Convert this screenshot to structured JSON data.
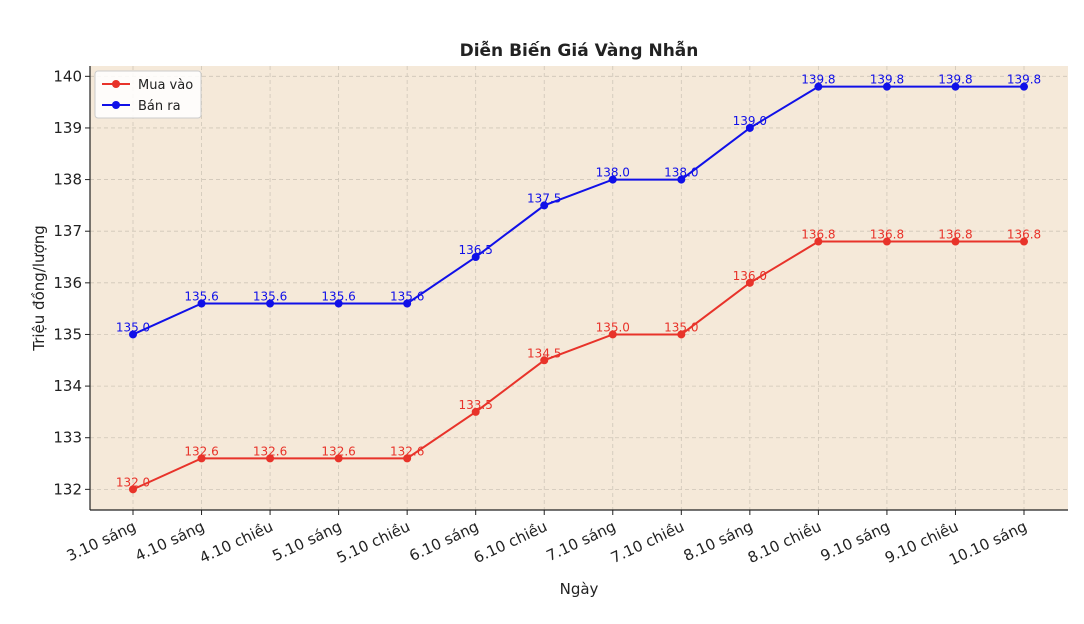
{
  "chart_data": {
    "type": "line",
    "title": "Diễn Biến Giá Vàng Nhẫn",
    "xlabel": "Ngày",
    "ylabel": "Triệu đồng/lượng",
    "categories": [
      "3.10 sáng",
      "4.10 sáng",
      "4.10 chiều",
      "5.10 sáng",
      "5.10 chiều",
      "6.10 sáng",
      "6.10 chiều",
      "7.10 sáng",
      "7.10 chiều",
      "8.10 sáng",
      "8.10 chiều",
      "9.10 sáng",
      "9.10 chiều",
      "10.10 sáng"
    ],
    "ylim": [
      131.6,
      140.2
    ],
    "yticks": [
      132,
      133,
      134,
      135,
      136,
      137,
      138,
      139,
      140
    ],
    "grid": true,
    "legend_position": "top-left",
    "background_color": "#f5e9d9",
    "series": [
      {
        "name": "Mua vào",
        "color": "#e8332a",
        "values": [
          132.0,
          132.6,
          132.6,
          132.6,
          132.6,
          133.5,
          134.5,
          135.0,
          135.0,
          136.0,
          136.8,
          136.8,
          136.8,
          136.8
        ],
        "labels": [
          "132.0",
          "132.6",
          "132.6",
          "132.6",
          "132.6",
          "133.5",
          "134.5",
          "135.0",
          "135.0",
          "136.0",
          "136.8",
          "136.8",
          "136.8",
          "136.8"
        ]
      },
      {
        "name": "Bán ra",
        "color": "#1010e8",
        "values": [
          135.0,
          135.6,
          135.6,
          135.6,
          135.6,
          136.5,
          137.5,
          138.0,
          138.0,
          139.0,
          139.8,
          139.8,
          139.8,
          139.8
        ],
        "labels": [
          "135.0",
          "135.6",
          "135.6",
          "135.6",
          "135.6",
          "136.5",
          "137.5",
          "138.0",
          "138.0",
          "139.0",
          "139.8",
          "139.8",
          "139.8",
          "139.8"
        ]
      }
    ]
  }
}
